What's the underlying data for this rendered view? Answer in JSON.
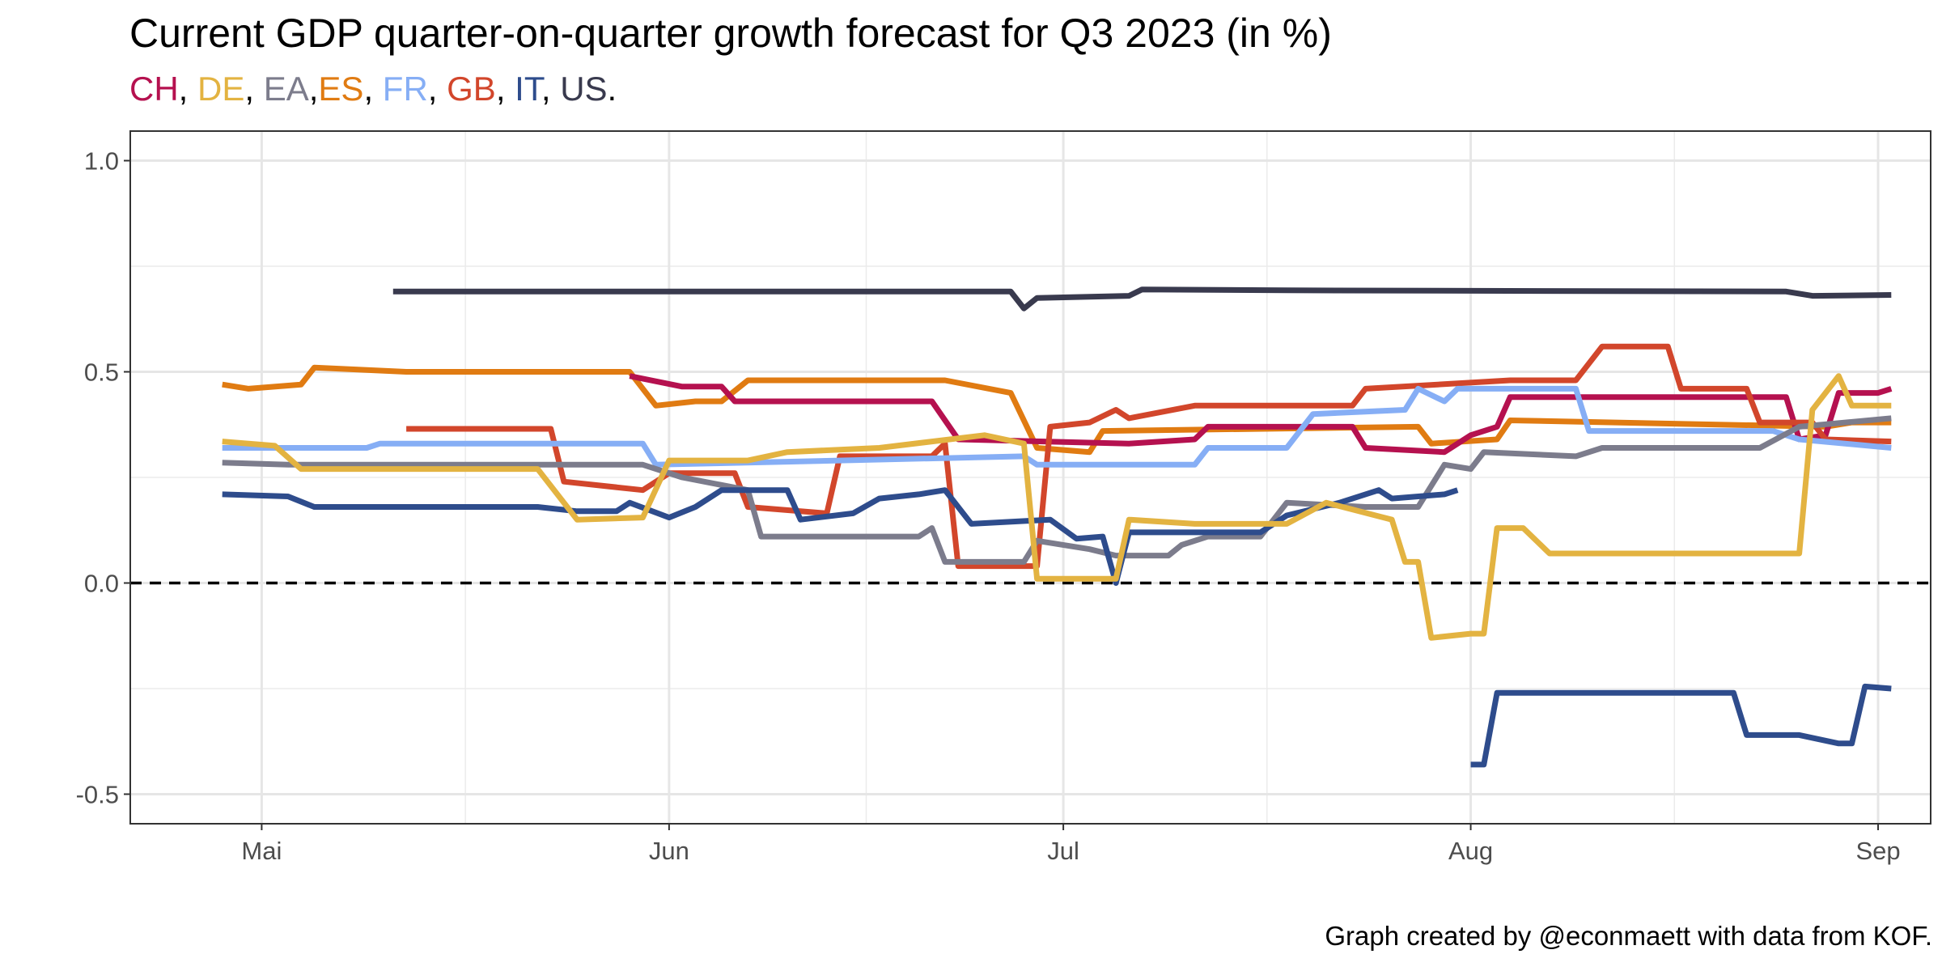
{
  "chart_data": {
    "type": "line",
    "title": "Current GDP quarter-on-quarter growth forecast for Q3 2023 (in %)",
    "subtitle_parts": [
      {
        "text": "CH",
        "color": "#b5114f"
      },
      {
        "text": ", ",
        "color": "#000000"
      },
      {
        "text": "DE",
        "color": "#e3b341"
      },
      {
        "text": ", ",
        "color": "#000000"
      },
      {
        "text": "EA",
        "color": "#7c7c8c"
      },
      {
        "text": ",",
        "color": "#000000"
      },
      {
        "text": "ES",
        "color": "#e07b12"
      },
      {
        "text": ", ",
        "color": "#000000"
      },
      {
        "text": "FR",
        "color": "#86aef5"
      },
      {
        "text": ", ",
        "color": "#000000"
      },
      {
        "text": "GB",
        "color": "#d2462b"
      },
      {
        "text": ", ",
        "color": "#000000"
      },
      {
        "text": "IT",
        "color": "#2e4c8c"
      },
      {
        "text": ", ",
        "color": "#000000"
      },
      {
        "text": "US",
        "color": "#393a4e"
      },
      {
        "text": ".",
        "color": "#000000"
      }
    ],
    "caption": "Graph created by @econmaett with data from KOF.",
    "x_ticks": [
      {
        "label": "Mai",
        "date": "2023-05-01"
      },
      {
        "label": "Jun",
        "date": "2023-06-01"
      },
      {
        "label": "Jul",
        "date": "2023-07-01"
      },
      {
        "label": "Aug",
        "date": "2023-08-01"
      },
      {
        "label": "Sep",
        "date": "2023-09-01"
      }
    ],
    "y_ticks": [
      "1.0",
      "0.5",
      "0.0",
      "-0.5"
    ],
    "xlim": [
      "2023-04-21",
      "2023-09-05"
    ],
    "ylim": [
      -0.57,
      1.07
    ],
    "grid": true,
    "reference_line": {
      "y": 0,
      "style": "dashed"
    },
    "series": [
      {
        "name": "US",
        "color": "#393a4e",
        "points": [
          [
            "2023-05-11",
            0.69
          ],
          [
            "2023-06-27",
            0.69
          ],
          [
            "2023-06-28",
            0.65
          ],
          [
            "2023-06-29",
            0.675
          ],
          [
            "2023-07-06",
            0.68
          ],
          [
            "2023-07-07",
            0.695
          ],
          [
            "2023-07-18",
            0.693
          ],
          [
            "2023-08-25",
            0.69
          ],
          [
            "2023-08-27",
            0.68
          ],
          [
            "2023-09-02",
            0.682
          ]
        ]
      },
      {
        "name": "ES",
        "color": "#e07b12",
        "points": [
          [
            "2023-04-28",
            0.47
          ],
          [
            "2023-04-30",
            0.46
          ],
          [
            "2023-05-04",
            0.47
          ],
          [
            "2023-05-05",
            0.51
          ],
          [
            "2023-05-12",
            0.5
          ],
          [
            "2023-05-29",
            0.5
          ],
          [
            "2023-05-31",
            0.42
          ],
          [
            "2023-06-03",
            0.43
          ],
          [
            "2023-06-05",
            0.43
          ],
          [
            "2023-06-07",
            0.48
          ],
          [
            "2023-06-22",
            0.48
          ],
          [
            "2023-06-27",
            0.45
          ],
          [
            "2023-06-29",
            0.32
          ],
          [
            "2023-07-03",
            0.31
          ],
          [
            "2023-07-04",
            0.36
          ],
          [
            "2023-07-28",
            0.37
          ],
          [
            "2023-07-29",
            0.33
          ],
          [
            "2023-08-03",
            0.34
          ],
          [
            "2023-08-04",
            0.385
          ],
          [
            "2023-08-12",
            0.38
          ],
          [
            "2023-08-28",
            0.37
          ],
          [
            "2023-08-30",
            0.38
          ],
          [
            "2023-09-02",
            0.38
          ]
        ]
      },
      {
        "name": "CH",
        "color": "#b5114f",
        "points": [
          [
            "2023-05-29",
            0.49
          ],
          [
            "2023-06-02",
            0.465
          ],
          [
            "2023-06-05",
            0.465
          ],
          [
            "2023-06-06",
            0.43
          ],
          [
            "2023-06-21",
            0.43
          ],
          [
            "2023-06-23",
            0.34
          ],
          [
            "2023-07-06",
            0.33
          ],
          [
            "2023-07-11",
            0.34
          ],
          [
            "2023-07-12",
            0.37
          ],
          [
            "2023-07-23",
            0.37
          ],
          [
            "2023-07-24",
            0.32
          ],
          [
            "2023-07-30",
            0.31
          ],
          [
            "2023-08-01",
            0.35
          ],
          [
            "2023-08-03",
            0.37
          ],
          [
            "2023-08-04",
            0.44
          ],
          [
            "2023-08-25",
            0.44
          ],
          [
            "2023-08-26",
            0.34
          ],
          [
            "2023-08-28",
            0.35
          ],
          [
            "2023-08-29",
            0.45
          ],
          [
            "2023-09-01",
            0.45
          ],
          [
            "2023-09-02",
            0.46
          ]
        ]
      },
      {
        "name": "GB",
        "color": "#d2462b",
        "points": [
          [
            "2023-05-12",
            0.365
          ],
          [
            "2023-05-23",
            0.365
          ],
          [
            "2023-05-24",
            0.24
          ],
          [
            "2023-05-30",
            0.22
          ],
          [
            "2023-06-01",
            0.26
          ],
          [
            "2023-06-06",
            0.26
          ],
          [
            "2023-06-07",
            0.18
          ],
          [
            "2023-06-13",
            0.165
          ],
          [
            "2023-06-14",
            0.3
          ],
          [
            "2023-06-21",
            0.3
          ],
          [
            "2023-06-22",
            0.33
          ],
          [
            "2023-06-23",
            0.04
          ],
          [
            "2023-06-29",
            0.04
          ],
          [
            "2023-06-30",
            0.37
          ],
          [
            "2023-07-03",
            0.38
          ],
          [
            "2023-07-05",
            0.41
          ],
          [
            "2023-07-06",
            0.39
          ],
          [
            "2023-07-11",
            0.42
          ],
          [
            "2023-07-23",
            0.42
          ],
          [
            "2023-07-24",
            0.46
          ],
          [
            "2023-08-04",
            0.48
          ],
          [
            "2023-08-09",
            0.48
          ],
          [
            "2023-08-11",
            0.56
          ],
          [
            "2023-08-16",
            0.56
          ],
          [
            "2023-08-17",
            0.46
          ],
          [
            "2023-08-22",
            0.46
          ],
          [
            "2023-08-23",
            0.38
          ],
          [
            "2023-08-27",
            0.38
          ],
          [
            "2023-08-28",
            0.34
          ],
          [
            "2023-09-02",
            0.335
          ]
        ]
      },
      {
        "name": "FR",
        "color": "#86aef5",
        "points": [
          [
            "2023-04-28",
            0.32
          ],
          [
            "2023-05-09",
            0.32
          ],
          [
            "2023-05-10",
            0.33
          ],
          [
            "2023-05-30",
            0.33
          ],
          [
            "2023-05-31",
            0.28
          ],
          [
            "2023-06-28",
            0.3
          ],
          [
            "2023-06-29",
            0.28
          ],
          [
            "2023-07-11",
            0.28
          ],
          [
            "2023-07-12",
            0.32
          ],
          [
            "2023-07-18",
            0.32
          ],
          [
            "2023-07-20",
            0.4
          ],
          [
            "2023-07-27",
            0.41
          ],
          [
            "2023-07-28",
            0.46
          ],
          [
            "2023-07-30",
            0.43
          ],
          [
            "2023-07-31",
            0.46
          ],
          [
            "2023-08-09",
            0.46
          ],
          [
            "2023-08-10",
            0.36
          ],
          [
            "2023-08-24",
            0.36
          ],
          [
            "2023-08-26",
            0.34
          ],
          [
            "2023-09-02",
            0.32
          ]
        ]
      },
      {
        "name": "EA",
        "color": "#7c7c8c",
        "points": [
          [
            "2023-04-28",
            0.285
          ],
          [
            "2023-05-03",
            0.28
          ],
          [
            "2023-05-30",
            0.28
          ],
          [
            "2023-06-02",
            0.25
          ],
          [
            "2023-06-07",
            0.22
          ],
          [
            "2023-06-08",
            0.11
          ],
          [
            "2023-06-20",
            0.11
          ],
          [
            "2023-06-21",
            0.13
          ],
          [
            "2023-06-22",
            0.05
          ],
          [
            "2023-06-28",
            0.05
          ],
          [
            "2023-06-29",
            0.1
          ],
          [
            "2023-07-03",
            0.08
          ],
          [
            "2023-07-05",
            0.065
          ],
          [
            "2023-07-09",
            0.065
          ],
          [
            "2023-07-10",
            0.09
          ],
          [
            "2023-07-12",
            0.11
          ],
          [
            "2023-07-16",
            0.11
          ],
          [
            "2023-07-18",
            0.19
          ],
          [
            "2023-07-24",
            0.18
          ],
          [
            "2023-07-28",
            0.18
          ],
          [
            "2023-07-30",
            0.28
          ],
          [
            "2023-08-01",
            0.27
          ],
          [
            "2023-08-02",
            0.31
          ],
          [
            "2023-08-09",
            0.3
          ],
          [
            "2023-08-11",
            0.32
          ],
          [
            "2023-08-23",
            0.32
          ],
          [
            "2023-08-26",
            0.37
          ],
          [
            "2023-09-02",
            0.39
          ]
        ]
      },
      {
        "name": "IT",
        "color": "#2e4c8c",
        "points": [
          [
            "2023-04-28",
            0.21
          ],
          [
            "2023-05-03",
            0.205
          ],
          [
            "2023-05-05",
            0.18
          ],
          [
            "2023-05-22",
            0.18
          ],
          [
            "2023-05-25",
            0.17
          ],
          [
            "2023-05-28",
            0.17
          ],
          [
            "2023-05-29",
            0.19
          ],
          [
            "2023-06-01",
            0.155
          ],
          [
            "2023-06-03",
            0.18
          ],
          [
            "2023-06-05",
            0.22
          ],
          [
            "2023-06-10",
            0.22
          ],
          [
            "2023-06-11",
            0.15
          ],
          [
            "2023-06-15",
            0.165
          ],
          [
            "2023-06-17",
            0.2
          ],
          [
            "2023-06-20",
            0.21
          ],
          [
            "2023-06-22",
            0.22
          ],
          [
            "2023-06-24",
            0.14
          ],
          [
            "2023-06-30",
            0.15
          ],
          [
            "2023-07-02",
            0.105
          ],
          [
            "2023-07-04",
            0.11
          ],
          [
            "2023-07-05",
            0.0
          ],
          [
            "2023-07-06",
            0.12
          ],
          [
            "2023-07-12",
            0.12
          ],
          [
            "2023-07-16",
            0.12
          ],
          [
            "2023-07-18",
            0.16
          ],
          [
            "2023-07-22",
            0.19
          ],
          [
            "2023-07-25",
            0.22
          ],
          [
            "2023-07-26",
            0.2
          ],
          [
            "2023-07-30",
            0.21
          ],
          [
            "2023-07-31",
            0.22
          ]
        ]
      },
      {
        "name": "IT",
        "color": "#2e4c8c",
        "points": [
          [
            "2023-08-01",
            -0.43
          ],
          [
            "2023-08-02",
            -0.43
          ],
          [
            "2023-08-03",
            -0.26
          ],
          [
            "2023-08-12",
            -0.26
          ],
          [
            "2023-08-21",
            -0.26
          ],
          [
            "2023-08-22",
            -0.36
          ],
          [
            "2023-08-26",
            -0.36
          ],
          [
            "2023-08-29",
            -0.38
          ],
          [
            "2023-08-30",
            -0.38
          ],
          [
            "2023-08-31",
            -0.245
          ],
          [
            "2023-09-02",
            -0.25
          ]
        ]
      },
      {
        "name": "DE",
        "color": "#e3b341",
        "points": [
          [
            "2023-04-28",
            0.335
          ],
          [
            "2023-05-02",
            0.325
          ],
          [
            "2023-05-04",
            0.27
          ],
          [
            "2023-05-22",
            0.27
          ],
          [
            "2023-05-25",
            0.15
          ],
          [
            "2023-05-30",
            0.155
          ],
          [
            "2023-06-01",
            0.29
          ],
          [
            "2023-06-07",
            0.29
          ],
          [
            "2023-06-10",
            0.31
          ],
          [
            "2023-06-17",
            0.32
          ],
          [
            "2023-06-25",
            0.35
          ],
          [
            "2023-06-28",
            0.33
          ],
          [
            "2023-06-29",
            0.01
          ],
          [
            "2023-07-05",
            0.01
          ],
          [
            "2023-07-06",
            0.15
          ],
          [
            "2023-07-11",
            0.14
          ],
          [
            "2023-07-18",
            0.14
          ],
          [
            "2023-07-21",
            0.19
          ],
          [
            "2023-07-26",
            0.15
          ],
          [
            "2023-07-27",
            0.05
          ],
          [
            "2023-07-28",
            0.05
          ],
          [
            "2023-07-29",
            -0.13
          ],
          [
            "2023-08-01",
            -0.12
          ],
          [
            "2023-08-02",
            -0.12
          ],
          [
            "2023-08-03",
            0.13
          ],
          [
            "2023-08-05",
            0.13
          ],
          [
            "2023-08-07",
            0.07
          ],
          [
            "2023-08-26",
            0.07
          ],
          [
            "2023-08-27",
            0.41
          ],
          [
            "2023-08-29",
            0.49
          ],
          [
            "2023-08-30",
            0.42
          ],
          [
            "2023-09-02",
            0.42
          ]
        ]
      }
    ]
  }
}
